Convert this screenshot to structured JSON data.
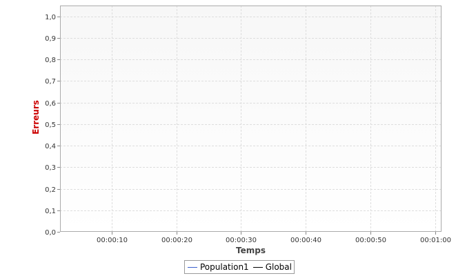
{
  "chart_data": {
    "type": "line",
    "title": "",
    "xlabel": "Temps",
    "ylabel": "Erreurs",
    "x_ticks": [
      "00:00:10",
      "00:00:20",
      "00:00:30",
      "00:00:40",
      "00:00:50",
      "00:01:00"
    ],
    "x_tick_seconds": [
      10,
      20,
      30,
      40,
      50,
      60
    ],
    "xlim_seconds": [
      2,
      61
    ],
    "y_ticks": [
      "0,0",
      "0,1",
      "0,2",
      "0,3",
      "0,4",
      "0,5",
      "0,6",
      "0,7",
      "0,8",
      "0,9",
      "1,0"
    ],
    "ylim": [
      0,
      1.05
    ],
    "grid": true,
    "legend_position": "bottom-center",
    "series": [
      {
        "name": "Population1",
        "color": "#3a5fcd",
        "values": []
      },
      {
        "name": "Global",
        "color": "#000000",
        "values": []
      }
    ]
  },
  "colors": {
    "ylabel": "#cc0000",
    "grid": "#dddddd",
    "plot_bg_top": "#f7f7f7",
    "plot_bg_bottom": "#ffffff",
    "plot_border": "#aaaaaa"
  }
}
